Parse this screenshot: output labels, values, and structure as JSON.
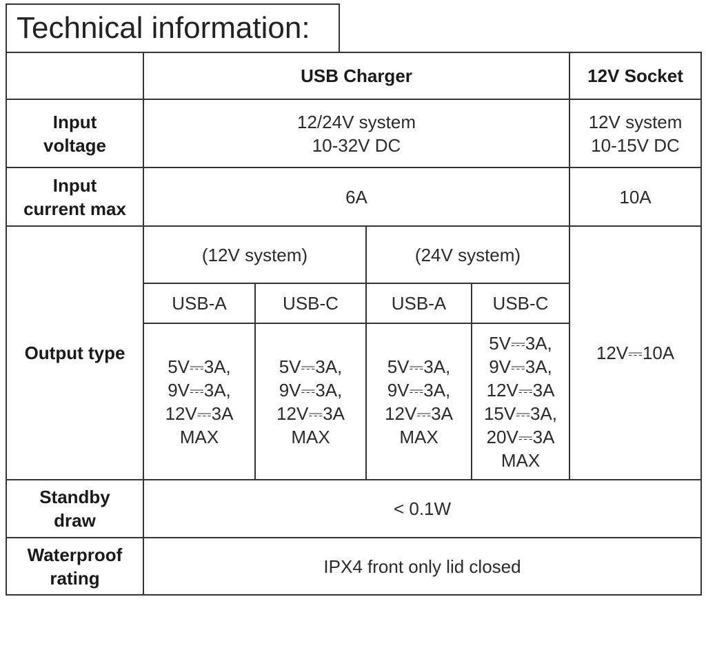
{
  "title": "Technical information:",
  "table": {
    "columns": [
      "USB Charger",
      "12V Socket"
    ],
    "rows": [
      {
        "label": [
          "Input",
          "voltage"
        ],
        "usb_charger": [
          "12/24V system",
          "10-32V DC"
        ],
        "socket": [
          "12V system",
          "10-15V DC"
        ]
      },
      {
        "label": [
          "Input",
          "current max"
        ],
        "usb_charger": [
          "6A"
        ],
        "socket": [
          "10A"
        ]
      },
      {
        "label": [
          "Output type"
        ],
        "systems": [
          "(12V system)",
          "(24V system)"
        ],
        "ports": [
          "USB-A",
          "USB-C",
          "USB-A",
          "USB-C"
        ],
        "outputs": [
          [
            "5V⎓3A,",
            "9V⎓3A,",
            "12V⎓3A",
            "MAX"
          ],
          [
            "5V⎓3A,",
            "9V⎓3A,",
            "12V⎓3A",
            "MAX"
          ],
          [
            "5V⎓3A,",
            "9V⎓3A,",
            "12V⎓3A",
            "MAX"
          ],
          [
            "5V⎓3A,",
            "9V⎓3A,",
            "12V⎓3A",
            "15V⎓3A,",
            "20V⎓3A",
            "MAX"
          ]
        ],
        "socket": [
          "12V⎓10A"
        ]
      },
      {
        "label": [
          "Standby",
          "draw"
        ],
        "value": [
          "< 0.1W"
        ]
      },
      {
        "label": [
          "Waterproof",
          "rating"
        ],
        "value": [
          "IPX4 front only lid closed"
        ]
      }
    ]
  }
}
